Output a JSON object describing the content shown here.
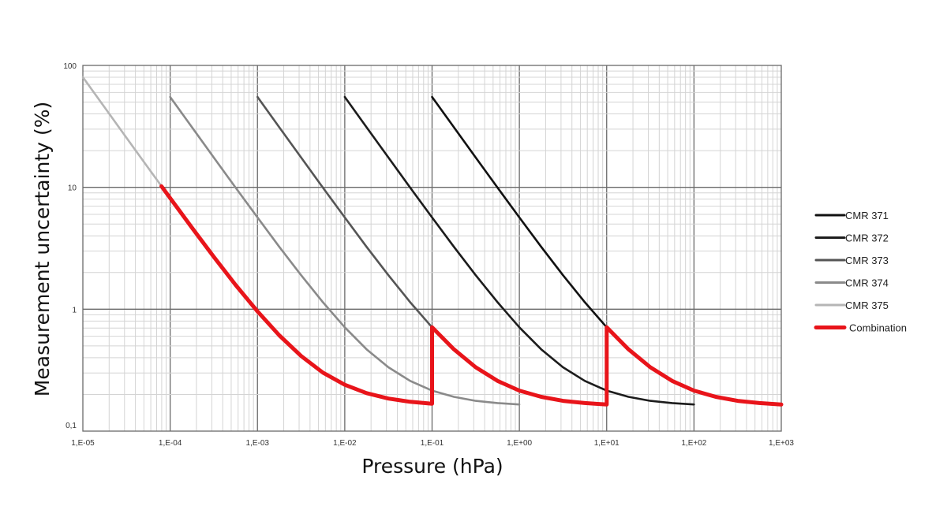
{
  "chart_data": {
    "type": "line",
    "title": "",
    "xlabel": "Pressure (hPa)",
    "ylabel": "Measurement uncertainty (%)",
    "xscale": "log",
    "yscale": "log",
    "xlim": [
      1e-05,
      1000.0
    ],
    "ylim": [
      0.1,
      100
    ],
    "grid": true,
    "legend_position": "right",
    "x_ticks": [
      "1,E-05",
      "1,E-04",
      "1,E-03",
      "1,E-02",
      "1,E-01",
      "1,E+00",
      "1,E+01",
      "1,E+02",
      "1,E+03"
    ],
    "y_ticks": [
      "0,1",
      "1",
      "10",
      "100"
    ],
    "x_note": "x values given as log10(pressure in hPa)",
    "series": [
      {
        "name": "CMR 371",
        "color": "#111111",
        "x": [
          -1,
          -0.75,
          -0.5,
          -0.25,
          0,
          0.25,
          0.5,
          0.75,
          1,
          1.25,
          1.5,
          1.75,
          2,
          2.25,
          2.5,
          2.75,
          3
        ],
        "y": [
          55.16,
          31.09,
          17.55,
          9.94,
          5.66,
          3.25,
          1.9,
          1.14,
          0.71,
          0.469,
          0.334,
          0.258,
          0.215,
          0.191,
          0.177,
          0.17,
          0.1655
        ]
      },
      {
        "name": "CMR 372",
        "color": "#1c1c1c",
        "x": [
          -2,
          -1.75,
          -1.5,
          -1.25,
          -1,
          -0.75,
          -0.5,
          -0.25,
          0,
          0.25,
          0.5,
          0.75,
          1,
          1.25,
          1.5,
          1.75,
          2
        ],
        "y": [
          55.16,
          31.09,
          17.55,
          9.94,
          5.66,
          3.25,
          1.9,
          1.14,
          0.71,
          0.469,
          0.334,
          0.258,
          0.215,
          0.191,
          0.177,
          0.17,
          0.1655
        ]
      },
      {
        "name": "CMR 373",
        "color": "#555555",
        "x": [
          -3,
          -2.75,
          -2.5,
          -2.25,
          -2,
          -1.75,
          -1.5,
          -1.25,
          -1,
          -0.75,
          -0.5,
          -0.25,
          0,
          0.25,
          0.5,
          0.75,
          1
        ],
        "y": [
          55.16,
          31.09,
          17.55,
          9.94,
          5.66,
          3.25,
          1.9,
          1.14,
          0.71,
          0.469,
          0.334,
          0.258,
          0.215,
          0.191,
          0.177,
          0.17,
          0.1655
        ]
      },
      {
        "name": "CMR 374",
        "color": "#8a8a8a",
        "x": [
          -4,
          -3.75,
          -3.5,
          -3.25,
          -3,
          -2.75,
          -2.5,
          -2.25,
          -2,
          -1.75,
          -1.5,
          -1.25,
          -1,
          -0.75,
          -0.5,
          -0.25,
          0
        ],
        "y": [
          55.16,
          31.09,
          17.55,
          9.94,
          5.66,
          3.25,
          1.9,
          1.14,
          0.71,
          0.469,
          0.334,
          0.258,
          0.215,
          0.191,
          0.177,
          0.17,
          0.1655
        ]
      },
      {
        "name": "CMR 375",
        "color": "#b5b5b5",
        "x": [
          -5,
          -4.75,
          -4.5,
          -4.25,
          -4,
          -3.75,
          -3.5,
          -3.25,
          -3,
          -2.75,
          -2.5,
          -2.25,
          -2,
          -1.75,
          -1.5,
          -1.25,
          -1
        ],
        "y": [
          80.16,
          45.15,
          25.46,
          14.39,
          8.16,
          4.66,
          2.69,
          1.58,
          0.96,
          0.61,
          0.413,
          0.302,
          0.24,
          0.205,
          0.185,
          0.174,
          0.168
        ]
      },
      {
        "name": "Combination",
        "color": "#e8141a",
        "x": [
          -4.1,
          -4,
          -3.75,
          -3.5,
          -3.25,
          -3,
          -2.75,
          -2.5,
          -2.25,
          -2,
          -1.75,
          -1.5,
          -1.25,
          -1,
          -1,
          -0.75,
          -0.5,
          -0.25,
          0,
          0.25,
          0.5,
          0.75,
          1,
          1,
          1.25,
          1.5,
          1.75,
          2,
          2.25,
          2.5,
          2.75,
          3
        ],
        "y": [
          10.2,
          8.16,
          4.66,
          2.69,
          1.58,
          0.96,
          0.61,
          0.413,
          0.302,
          0.24,
          0.205,
          0.185,
          0.174,
          0.168,
          0.71,
          0.469,
          0.334,
          0.258,
          0.215,
          0.191,
          0.177,
          0.17,
          0.1655,
          0.71,
          0.469,
          0.334,
          0.258,
          0.215,
          0.191,
          0.177,
          0.17,
          0.1655
        ]
      }
    ]
  }
}
